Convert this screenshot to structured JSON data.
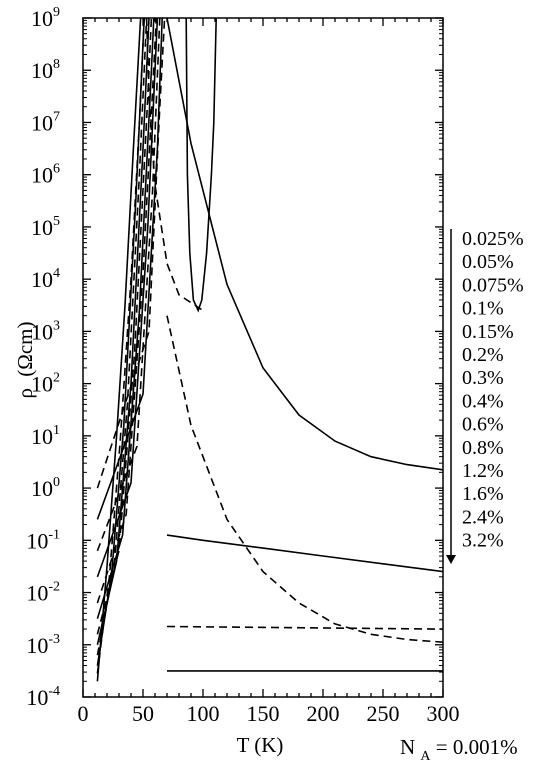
{
  "chart_data": {
    "type": "line",
    "xlabel": "T (K)",
    "ylabel_prefix": "ρ",
    "ylabel_unit": "(Ωcm)",
    "xlim": [
      0,
      300
    ],
    "ylim_exponent": [
      -4,
      9
    ],
    "y_scale": "log",
    "grid": false,
    "x_ticks": [
      "0",
      "50",
      "100",
      "150",
      "200",
      "250",
      "300"
    ],
    "y_tick_base": "10",
    "y_tick_exponents": [
      "-4",
      "-3",
      "-2",
      "-1",
      "0",
      "1",
      "2",
      "3",
      "4",
      "5",
      "6",
      "7",
      "8",
      "9"
    ],
    "footnote": {
      "symbol": "N",
      "subscript": "A",
      "value": "= 0.001%"
    },
    "legend_order": "top-to-bottom",
    "legend_entries": [
      "0.025%",
      "0.05%",
      "0.075%",
      "0.1%",
      "0.15%",
      "0.2%",
      "0.3%",
      "0.4%",
      "0.6%",
      "0.8%",
      "1.2%",
      "1.6%",
      "2.4%",
      "3.2%"
    ],
    "series": [
      {
        "dash": false,
        "points": [
          [
            86,
            9
          ],
          [
            87,
            6
          ],
          [
            89,
            4.5
          ],
          [
            92,
            3.6
          ],
          [
            96,
            3.4
          ],
          [
            99,
            3.6
          ],
          [
            103,
            4.5
          ],
          [
            107,
            6
          ],
          [
            109,
            7
          ],
          [
            111,
            9
          ]
        ]
      },
      {
        "dash": true,
        "points": [
          [
            53,
            9
          ],
          [
            55,
            7.5
          ],
          [
            60,
            5.8
          ],
          [
            70,
            4.3
          ],
          [
            80,
            3.7
          ],
          [
            100,
            3.4
          ]
        ],
        "comment_free": true
      },
      {
        "dash": false,
        "points": [
          [
            12,
            -3.7
          ],
          [
            20,
            -1.5
          ],
          [
            28,
            1.0
          ],
          [
            35,
            3.5
          ],
          [
            42,
            6.5
          ],
          [
            48,
            9
          ]
        ]
      },
      {
        "dash": true,
        "points": [
          [
            12,
            -3.55
          ],
          [
            22,
            -1.7
          ],
          [
            31,
            0.9
          ],
          [
            40,
            4.0
          ],
          [
            47,
            7.0
          ],
          [
            51,
            9
          ]
        ]
      },
      {
        "dash": false,
        "points": [
          [
            12,
            -3.4
          ],
          [
            24,
            -1.6
          ],
          [
            34,
            1.2
          ],
          [
            44,
            5.5
          ],
          [
            51,
            9
          ]
        ]
      },
      {
        "dash": true,
        "points": [
          [
            12,
            -3.2
          ],
          [
            26,
            -1.5
          ],
          [
            37,
            1.6
          ],
          [
            47,
            6.0
          ],
          [
            53,
            9
          ]
        ]
      },
      {
        "dash": false,
        "points": [
          [
            12,
            -3.0
          ],
          [
            28,
            -1.4
          ],
          [
            40,
            2.0
          ],
          [
            50,
            6.5
          ],
          [
            55,
            9
          ]
        ]
      },
      {
        "dash": true,
        "points": [
          [
            12,
            -2.8
          ],
          [
            30,
            -1.2
          ],
          [
            43,
            2.6
          ],
          [
            54,
            7.5
          ],
          [
            57,
            9
          ]
        ]
      },
      {
        "dash": false,
        "points": [
          [
            12,
            -2.5
          ],
          [
            33,
            -0.9
          ],
          [
            47,
            3.4
          ],
          [
            57,
            8.0
          ],
          [
            59,
            9
          ]
        ]
      },
      {
        "dash": true,
        "points": [
          [
            12,
            -2.2
          ],
          [
            36,
            -0.5
          ],
          [
            50,
            4.1
          ],
          [
            60,
            8.5
          ],
          [
            61,
            9
          ]
        ]
      },
      {
        "dash": false,
        "points": [
          [
            12,
            -1.7
          ],
          [
            40,
            0.1
          ],
          [
            54,
            5.0
          ],
          [
            62,
            9
          ]
        ]
      },
      {
        "dash": true,
        "points": [
          [
            12,
            -1.2
          ],
          [
            45,
            0.8
          ],
          [
            58,
            5.7
          ],
          [
            64,
            9
          ]
        ]
      },
      {
        "dash": false,
        "points": [
          [
            12,
            -0.6
          ],
          [
            50,
            1.8
          ],
          [
            62,
            6.5
          ],
          [
            66,
            9
          ]
        ]
      },
      {
        "dash": true,
        "points": [
          [
            12,
            0.0
          ],
          [
            55,
            3.0
          ],
          [
            64,
            7.3
          ],
          [
            68,
            9
          ]
        ]
      },
      {
        "dash": false,
        "points": [
          [
            70,
            9
          ],
          [
            90,
            6.6
          ],
          [
            120,
            3.9
          ],
          [
            150,
            2.3
          ],
          [
            180,
            1.4
          ],
          [
            210,
            0.9
          ],
          [
            240,
            0.6
          ],
          [
            270,
            0.45
          ],
          [
            300,
            0.35
          ]
        ]
      },
      {
        "dash": true,
        "points": [
          [
            70,
            3.3
          ],
          [
            90,
            1.2
          ],
          [
            120,
            -0.6
          ],
          [
            150,
            -1.6
          ],
          [
            180,
            -2.2
          ],
          [
            210,
            -2.6
          ],
          [
            240,
            -2.8
          ],
          [
            270,
            -2.9
          ],
          [
            300,
            -2.95
          ]
        ]
      },
      {
        "dash": false,
        "points": [
          [
            70,
            -0.9
          ],
          [
            100,
            -1.0
          ],
          [
            150,
            -1.15
          ],
          [
            200,
            -1.3
          ],
          [
            250,
            -1.45
          ],
          [
            300,
            -1.6
          ]
        ]
      },
      {
        "dash": true,
        "points": [
          [
            70,
            -2.65
          ],
          [
            300,
            -2.7
          ]
        ]
      },
      {
        "dash": false,
        "points": [
          [
            70,
            -3.5
          ],
          [
            300,
            -3.5
          ]
        ]
      }
    ]
  }
}
